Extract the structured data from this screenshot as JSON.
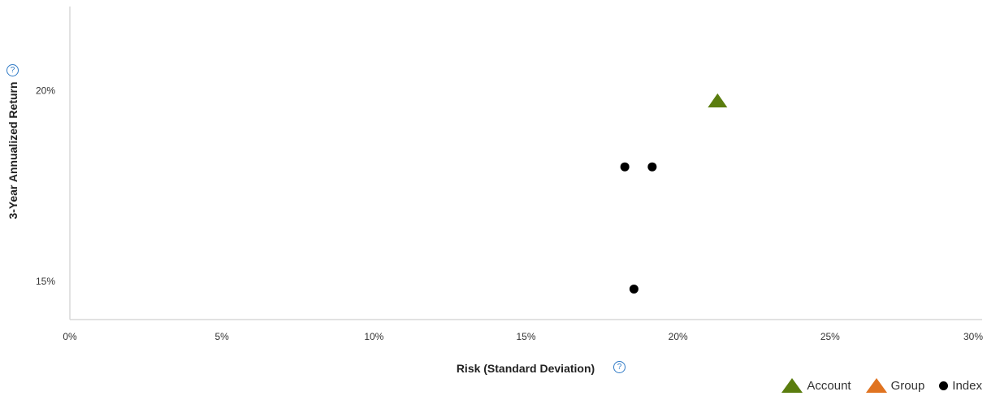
{
  "chart_data": {
    "type": "scatter",
    "xlabel": "Risk (Standard Deviation)",
    "ylabel": "3-Year Annualized Return",
    "xlim": [
      0,
      30
    ],
    "ylim": [
      14.0,
      22.2
    ],
    "x_ticks": [
      "0%",
      "5%",
      "10%",
      "15%",
      "20%",
      "25%",
      "30%"
    ],
    "y_ticks": [
      "15%",
      "20%"
    ],
    "x_tick_values": [
      0,
      5,
      10,
      15,
      20,
      25,
      30
    ],
    "y_tick_values": [
      15,
      20
    ],
    "grid": false,
    "legend_position": "bottom-right",
    "series": [
      {
        "name": "Account",
        "marker": "triangle",
        "color": "#5a7d0e",
        "points": [
          {
            "x": 21.3,
            "y": 19.7
          }
        ]
      },
      {
        "name": "Group",
        "marker": "triangle",
        "color": "#e07320",
        "points": []
      },
      {
        "name": "Index",
        "marker": "circle",
        "color": "#000000",
        "points": [
          {
            "x": 18.25,
            "y": 18.0
          },
          {
            "x": 19.15,
            "y": 18.0
          },
          {
            "x": 18.55,
            "y": 14.8
          }
        ]
      }
    ]
  },
  "help_icon_glyph": "?"
}
